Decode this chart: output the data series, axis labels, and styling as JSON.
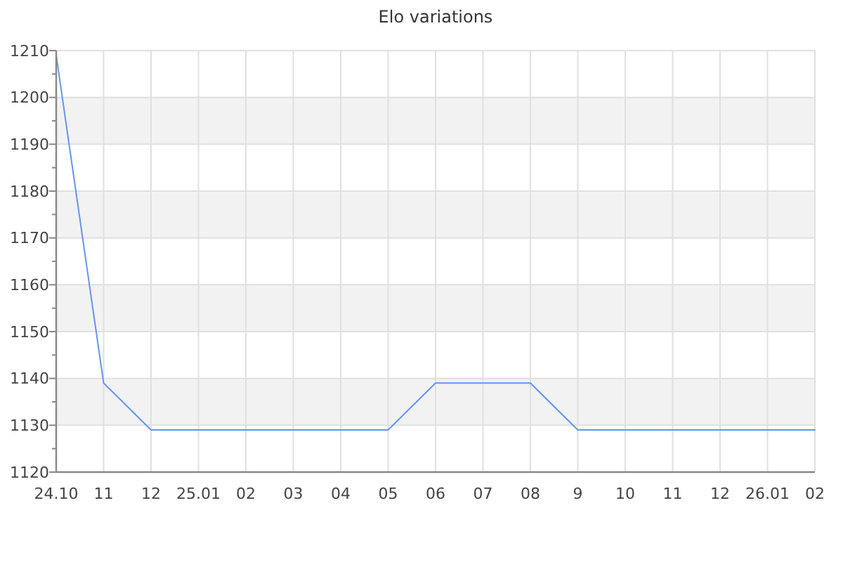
{
  "chart_data": {
    "type": "line",
    "title": "Elo variations",
    "categories": [
      "24.10",
      "11",
      "12",
      "25.01",
      "02",
      "03",
      "04",
      "05",
      "06",
      "07",
      "08",
      "9",
      "10",
      "11",
      "12",
      "26.01",
      "02"
    ],
    "series": [
      {
        "color": "#6495ed",
        "values": [
          1209,
          1139,
          1129,
          1129,
          1129,
          1129,
          1129,
          1129,
          1139,
          1139,
          1139,
          1129,
          1129,
          1129,
          1129,
          1129,
          1129
        ]
      }
    ],
    "ylim": [
      1120,
      1210
    ],
    "yticks": [
      1120,
      {
        "value": 1125,
        "label": null
      },
      1130,
      {
        "value": 1135,
        "label": null
      },
      1140,
      {
        "value": 1145,
        "label": null
      },
      1150,
      {
        "value": 1155,
        "label": null
      },
      1160,
      {
        "value": 1165,
        "label": null
      },
      1170,
      {
        "value": 1175,
        "label": null
      },
      1180,
      {
        "value": 1185,
        "label": null
      },
      1190,
      {
        "value": 1195,
        "label": null
      },
      1200,
      {
        "value": 1205,
        "label": null
      },
      1210
    ],
    "grid": true,
    "line_style": "solid"
  }
}
